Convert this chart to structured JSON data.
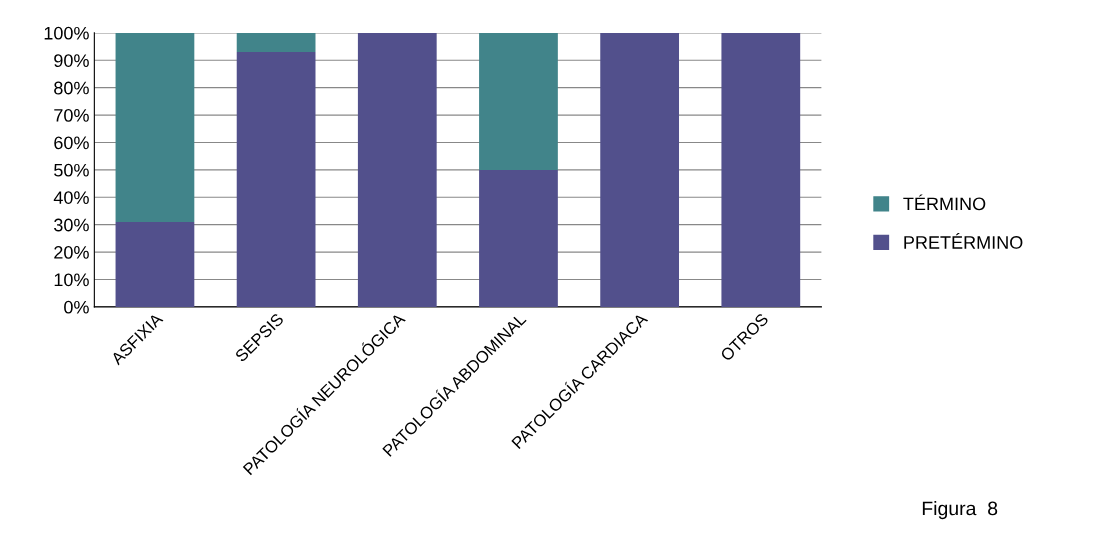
{
  "chart_data": {
    "type": "bar",
    "stacked": true,
    "categories": [
      "ASFIXIA",
      "SEPSIS",
      "PATOLOGÍA NEUROLÓGICA",
      "PATOLOGÍA ABDOMINAL",
      "PATOLOGÍA CARDIACA",
      "OTROS"
    ],
    "series": [
      {
        "name": "PRETÉRMINO",
        "color": "#52508c",
        "values": [
          31,
          93,
          100,
          50,
          100,
          100
        ]
      },
      {
        "name": "TÉRMINO",
        "color": "#41848a",
        "values": [
          69,
          7,
          0,
          50,
          0,
          0
        ]
      }
    ],
    "ylim": [
      0,
      100
    ],
    "yticks": [
      {
        "value": 0,
        "label": "0%"
      },
      {
        "value": 10,
        "label": "10%"
      },
      {
        "value": 20,
        "label": "20%"
      },
      {
        "value": 30,
        "label": "30%"
      },
      {
        "value": 40,
        "label": "40%"
      },
      {
        "value": 50,
        "label": "50%"
      },
      {
        "value": 60,
        "label": "60%"
      },
      {
        "value": 70,
        "label": "70%"
      },
      {
        "value": 80,
        "label": "80%"
      },
      {
        "value": 90,
        "label": "90%"
      },
      {
        "value": 100,
        "label": "100%"
      }
    ],
    "grid": "y",
    "legend": "right",
    "annotations": [
      "Figura  8"
    ]
  }
}
